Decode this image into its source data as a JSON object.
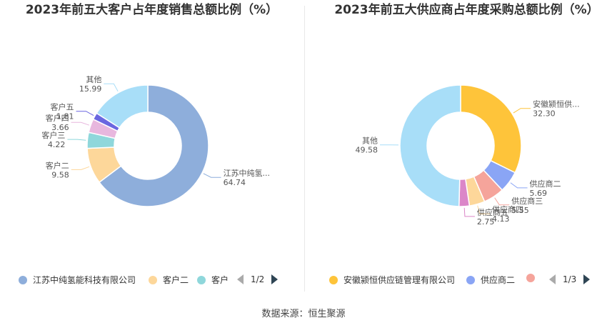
{
  "source_text": "数据来源：恒生聚源",
  "chart_data": [
    {
      "type": "pie",
      "title": "2023年前五大客户占年度销售总额比例（%）",
      "slices": [
        {
          "label": "江苏中纯氢...",
          "full_name": "江苏中纯氢能科技有限公司",
          "value": 64.74,
          "color": "#8eaedb"
        },
        {
          "label": "客户二",
          "full_name": "客户二",
          "value": 9.58,
          "color": "#fdd79a"
        },
        {
          "label": "客户三",
          "full_name": "客户",
          "value": 4.22,
          "color": "#8fd7db"
        },
        {
          "label": "客户四",
          "full_name": "客户四",
          "value": 3.66,
          "color": "#e8b7de"
        },
        {
          "label": "客户五",
          "full_name": "客户五",
          "value": 1.81,
          "color": "#6a67e0"
        },
        {
          "label": "其他",
          "full_name": "其他",
          "value": 15.99,
          "color": "#a8def8"
        }
      ],
      "legend": {
        "placement": "bottom",
        "page": "1/2"
      }
    },
    {
      "type": "pie",
      "title": "2023年前五大供应商占年度采购总额比例（%）",
      "slices": [
        {
          "label": "安徽颍恒供...",
          "full_name": "安徽颍恒供应链管理有限公司",
          "value": 32.3,
          "color": "#fec43a"
        },
        {
          "label": "供应商二",
          "full_name": "供应商二",
          "value": 5.69,
          "color": "#8aa5f5"
        },
        {
          "label": "供应商三",
          "full_name": "",
          "value": 5.55,
          "color": "#f5a49b"
        },
        {
          "label": "供应商四",
          "full_name": "",
          "value": 4.13,
          "color": "#fdd79a"
        },
        {
          "label": "供应商五",
          "full_name": "",
          "value": 2.75,
          "color": "#db86c8"
        },
        {
          "label": "其他",
          "full_name": "",
          "value": 49.58,
          "color": "#a8def8"
        }
      ],
      "legend": {
        "placement": "bottom",
        "page": "1/3"
      }
    }
  ]
}
